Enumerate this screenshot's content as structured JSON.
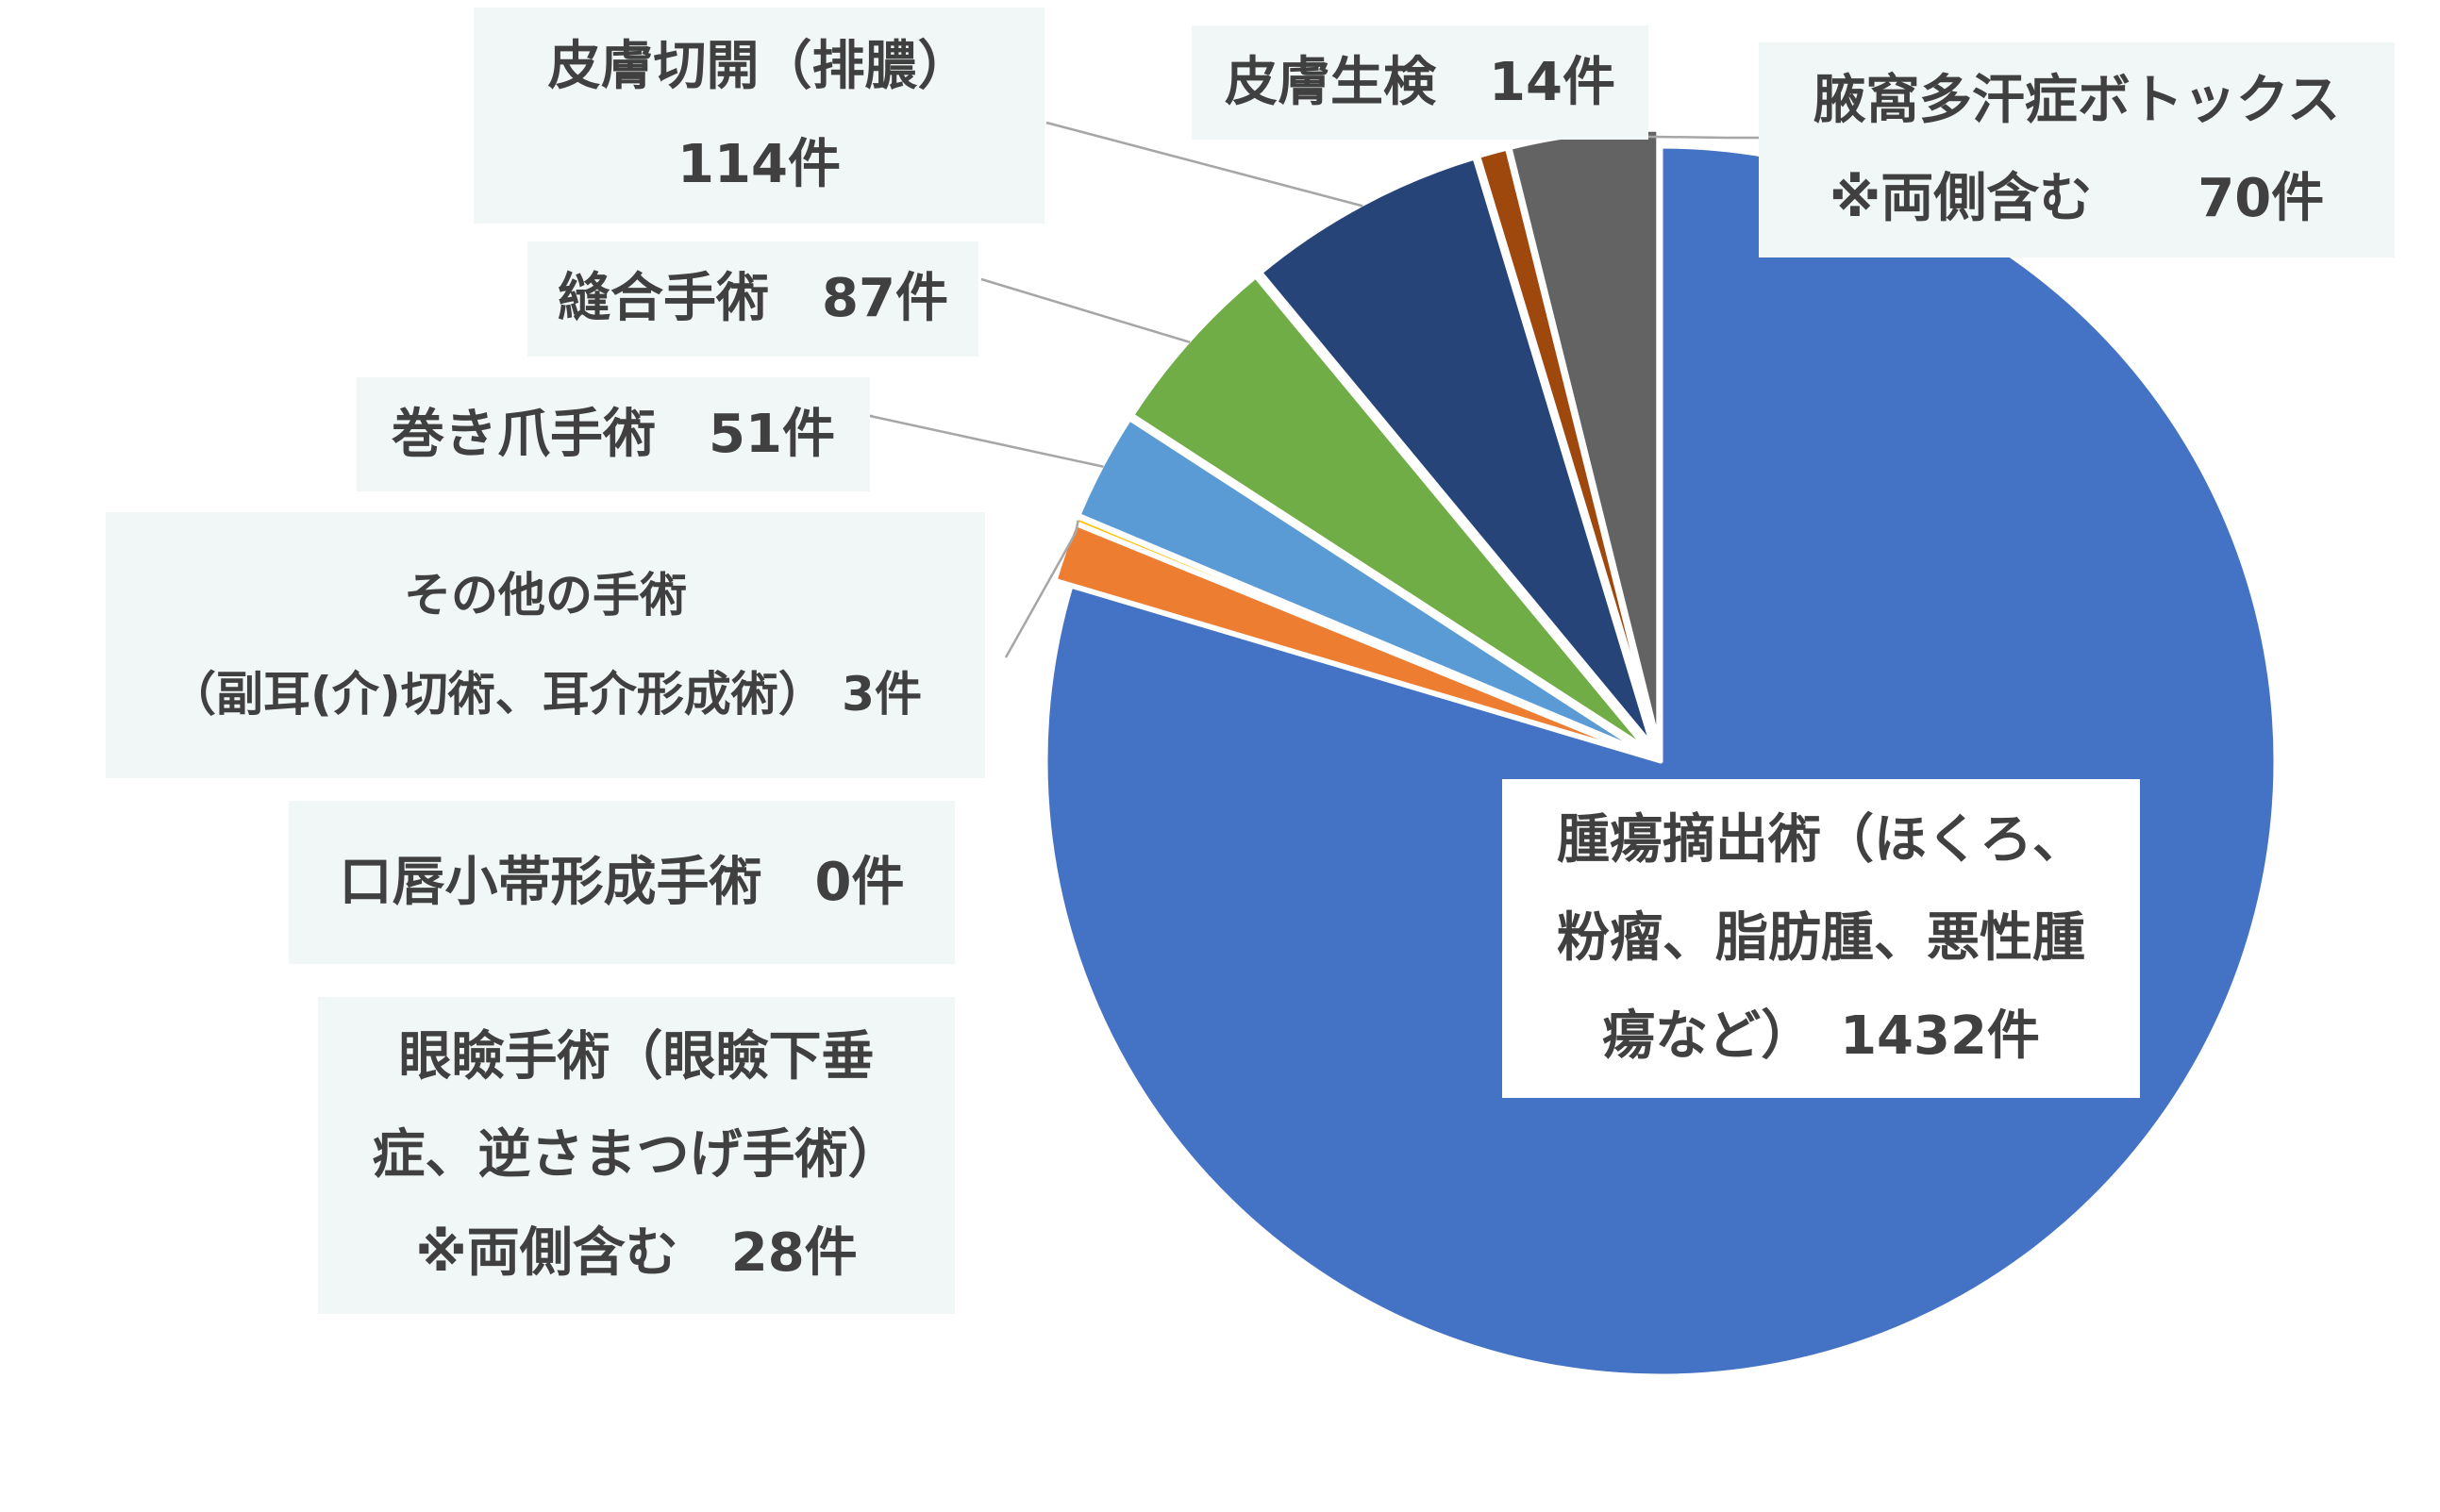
{
  "chart_data": {
    "type": "pie",
    "title": "",
    "legend": "none",
    "slices": [
      {
        "label_lines": [
          "腫瘍摘出術（ほくろ、",
          "粉瘤、脂肪腫、悪性腫",
          "瘍など）　1432件"
        ],
        "value": 1432,
        "color": "#4472c4"
      },
      {
        "label_lines": [
          "眼瞼手術（眼瞼下垂",
          "症、逆さまつげ手術）",
          "※両側含む　28件"
        ],
        "value": 28,
        "color": "#ed7d31"
      },
      {
        "label_lines": [
          "口唇小帯形成手術　0件"
        ],
        "value": 0,
        "color": "#a5a5a5"
      },
      {
        "label_lines": [
          "その他の手術",
          "（副耳(介)切術、耳介形成術） 3件"
        ],
        "value": 3,
        "color": "#ffc000"
      },
      {
        "label_lines": [
          "巻き爪手術　51件"
        ],
        "value": 51,
        "color": "#5b9bd5"
      },
      {
        "label_lines": [
          "縫合手術　87件"
        ],
        "value": 87,
        "color": "#70ad47"
      },
      {
        "label_lines": [
          "皮膚切開（排膿）",
          "114件"
        ],
        "value": 114,
        "color": "#264478"
      },
      {
        "label_lines": [
          "皮膚生検　14件"
        ],
        "value": 14,
        "color": "#9e480e"
      },
      {
        "label_lines": [
          "腋窩多汗症ボトックス",
          "※両側含む　　70件"
        ],
        "value": 70,
        "color": "#636363"
      }
    ]
  }
}
